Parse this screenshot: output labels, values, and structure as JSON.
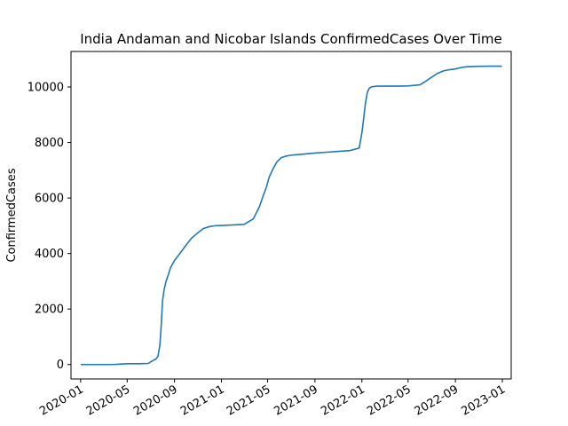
{
  "chart_data": {
    "type": "line",
    "title": "India Andaman and Nicobar Islands ConfirmedCases Over Time",
    "xlabel": "",
    "ylabel": "ConfirmedCases",
    "xlim": [
      "2019-12-07",
      "2023-01-24"
    ],
    "ylim": [
      -520,
      11280
    ],
    "x_ticks": [
      "2020-01",
      "2020-05",
      "2020-09",
      "2021-01",
      "2021-05",
      "2021-09",
      "2022-01",
      "2022-05",
      "2022-09",
      "2023-01"
    ],
    "x_tick_dates": [
      "2020-01-01",
      "2020-05-01",
      "2020-09-01",
      "2021-01-01",
      "2021-05-01",
      "2021-09-01",
      "2022-01-01",
      "2022-05-01",
      "2022-09-01",
      "2023-01-01"
    ],
    "y_ticks": [
      0,
      2000,
      4000,
      6000,
      8000,
      10000
    ],
    "y_tick_labels": [
      "0",
      "2000",
      "4000",
      "6000",
      "8000",
      "10000"
    ],
    "grid": false,
    "legend": "none",
    "line_color": "#1f77b4",
    "series": [
      {
        "x": [
          "2020-01-01",
          "2020-03-15",
          "2020-04-01",
          "2020-05-01",
          "2020-06-01",
          "2020-06-25",
          "2020-07-05",
          "2020-07-15",
          "2020-07-20",
          "2020-07-25",
          "2020-07-28",
          "2020-08-01",
          "2020-08-05",
          "2020-08-10",
          "2020-08-15",
          "2020-08-22",
          "2020-09-01",
          "2020-09-15",
          "2020-10-01",
          "2020-10-15",
          "2020-11-01",
          "2020-11-15",
          "2020-12-01",
          "2020-12-15",
          "2021-01-01",
          "2021-02-01",
          "2021-03-01",
          "2021-03-25",
          "2021-04-10",
          "2021-04-20",
          "2021-04-28",
          "2021-05-05",
          "2021-05-15",
          "2021-05-25",
          "2021-06-05",
          "2021-06-15",
          "2021-06-25",
          "2021-07-05",
          "2021-07-15",
          "2021-08-01",
          "2021-09-01",
          "2021-10-01",
          "2021-11-01",
          "2021-12-01",
          "2021-12-25",
          "2022-01-01",
          "2022-01-05",
          "2022-01-10",
          "2022-01-15",
          "2022-01-20",
          "2022-01-25",
          "2022-02-01",
          "2022-02-10",
          "2022-02-20",
          "2022-03-01",
          "2022-04-01",
          "2022-05-01",
          "2022-06-01",
          "2022-06-15",
          "2022-07-01",
          "2022-07-15",
          "2022-08-01",
          "2022-08-15",
          "2022-09-01",
          "2022-09-15",
          "2022-10-01",
          "2022-11-01",
          "2022-12-01",
          "2022-12-31"
        ],
        "y": [
          0,
          0,
          5,
          30,
          30,
          40,
          130,
          200,
          300,
          700,
          1300,
          2300,
          2700,
          3000,
          3200,
          3500,
          3750,
          4000,
          4300,
          4550,
          4750,
          4900,
          4970,
          5000,
          5010,
          5030,
          5050,
          5250,
          5700,
          6100,
          6400,
          6750,
          7050,
          7300,
          7450,
          7500,
          7530,
          7550,
          7560,
          7580,
          7620,
          7650,
          7680,
          7710,
          7800,
          8350,
          8800,
          9400,
          9800,
          9950,
          10000,
          10020,
          10030,
          10030,
          10030,
          10030,
          10040,
          10080,
          10200,
          10350,
          10480,
          10580,
          10620,
          10650,
          10700,
          10730,
          10745,
          10750,
          10750
        ]
      }
    ]
  }
}
